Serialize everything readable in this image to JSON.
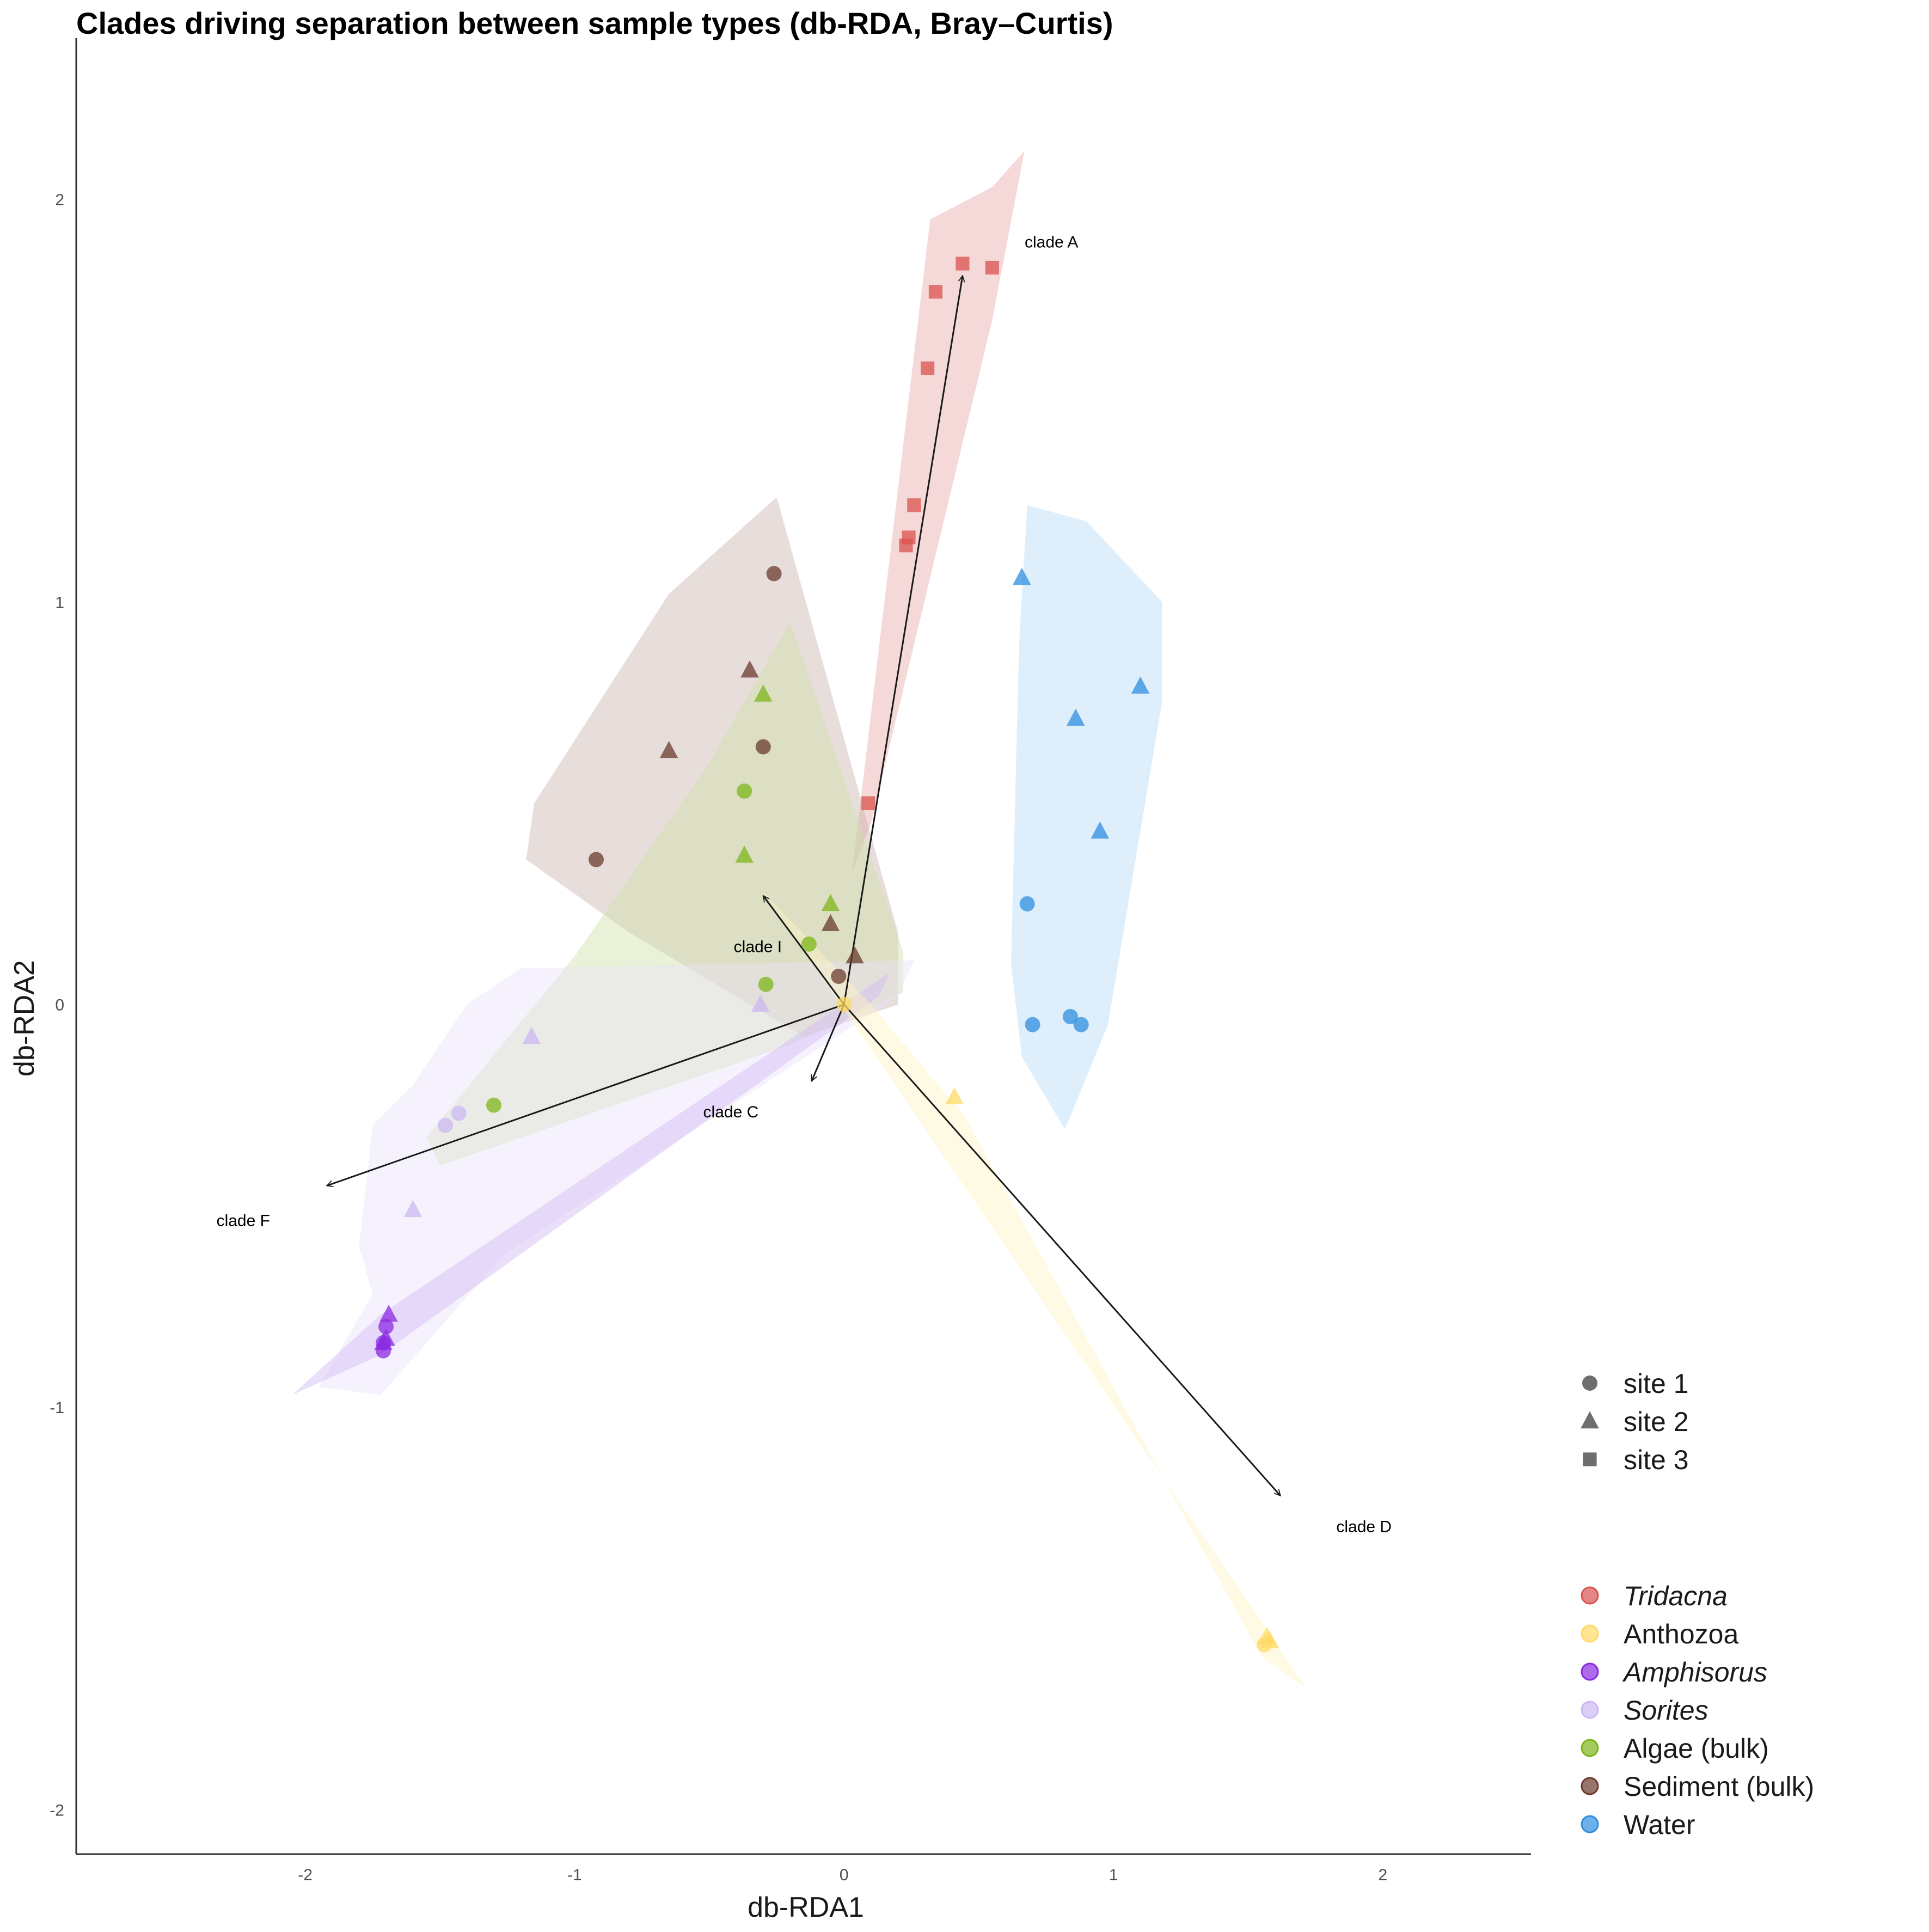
{
  "chart_data": {
    "type": "scatter",
    "title": "Clades driving separation between sample types (db-RDA, Bray–Curtis)",
    "xlabel": "db-RDA1",
    "ylabel": "db-RDA2",
    "xlim": [
      -2.85,
      2.55
    ],
    "ylim": [
      -2.11,
      2.4
    ],
    "x_ticks": [
      -2,
      -1,
      0,
      1,
      2
    ],
    "y_ticks": [
      -2,
      -1,
      0,
      1,
      2
    ],
    "grid": false,
    "legend_placement": "right",
    "shape_legend": [
      {
        "label": "site 1",
        "shape": "circle"
      },
      {
        "label": "site 2",
        "shape": "triangle"
      },
      {
        "label": "site 3",
        "shape": "square"
      }
    ],
    "group_legend": [
      {
        "key": "tridacna",
        "label": "Tridacna",
        "color": "#d9534f",
        "italic": true
      },
      {
        "key": "anthozoa",
        "label": "Anthozoa",
        "color": "#ffd966",
        "italic": false
      },
      {
        "key": "amphisorus",
        "label": "Amphisorus",
        "color": "#8a2be2",
        "italic": true
      },
      {
        "key": "sorites",
        "label": "Sorites",
        "color": "#cbb8f2",
        "italic": true
      },
      {
        "key": "algae",
        "label": "Algae (bulk)",
        "color": "#7cb518",
        "italic": false
      },
      {
        "key": "sediment",
        "label": "Sediment (bulk)",
        "color": "#6b3a2e",
        "italic": false
      },
      {
        "key": "water",
        "label": "Water",
        "color": "#2e8de0",
        "italic": false
      }
    ],
    "hulls": [
      {
        "group": "tridacna",
        "color": "#e8a8a8",
        "points": [
          [
            0.03,
            0.33
          ],
          [
            0.32,
            1.95
          ],
          [
            0.55,
            2.03
          ],
          [
            0.67,
            2.12
          ],
          [
            0.55,
            1.7
          ],
          [
            0.1,
            0.45
          ]
        ]
      },
      {
        "group": "water",
        "color": "#b6d9f7",
        "points": [
          [
            0.68,
            1.24
          ],
          [
            0.9,
            1.2
          ],
          [
            1.18,
            1.0
          ],
          [
            1.18,
            0.75
          ],
          [
            0.98,
            -0.05
          ],
          [
            0.82,
            -0.31
          ],
          [
            0.66,
            -0.13
          ],
          [
            0.62,
            0.1
          ],
          [
            0.65,
            0.9
          ]
        ]
      },
      {
        "group": "sediment",
        "color": "#c9b3ad",
        "points": [
          [
            -0.25,
            1.26
          ],
          [
            0.2,
            0.18
          ],
          [
            0.2,
            0.0
          ],
          [
            -0.15,
            -0.08
          ],
          [
            -0.8,
            0.18
          ],
          [
            -1.18,
            0.36
          ],
          [
            -1.15,
            0.5
          ],
          [
            -0.65,
            1.02
          ]
        ]
      },
      {
        "group": "algae",
        "color": "#cfe2a8",
        "points": [
          [
            -0.2,
            0.95
          ],
          [
            0.22,
            0.13
          ],
          [
            0.22,
            0.03
          ],
          [
            -0.2,
            -0.1
          ],
          [
            -1.5,
            -0.4
          ],
          [
            -1.55,
            -0.33
          ],
          [
            -1.0,
            0.12
          ],
          [
            -0.5,
            0.6
          ]
        ]
      },
      {
        "group": "sorites",
        "color": "#ebe3fb",
        "points": [
          [
            -1.2,
            0.09
          ],
          [
            0.26,
            0.11
          ],
          [
            0.2,
            0.02
          ],
          [
            -1.26,
            -0.62
          ],
          [
            -1.72,
            -0.97
          ],
          [
            -1.95,
            -0.95
          ],
          [
            -1.75,
            -0.72
          ],
          [
            -1.8,
            -0.6
          ],
          [
            -1.75,
            -0.3
          ],
          [
            -1.6,
            -0.2
          ],
          [
            -1.4,
            0.0
          ]
        ]
      },
      {
        "group": "amphisorus",
        "color": "#d1b8f2",
        "points": [
          [
            -1.72,
            -0.77
          ],
          [
            0.17,
            0.08
          ],
          [
            0.13,
            0.02
          ],
          [
            -1.72,
            -0.87
          ],
          [
            -2.05,
            -0.97
          ]
        ]
      },
      {
        "group": "anthozoa",
        "color": "#fff3c4",
        "points": [
          [
            -0.3,
            0.28
          ],
          [
            1.72,
            -1.7
          ],
          [
            1.55,
            -1.62
          ],
          [
            0.45,
            -0.28
          ],
          [
            0.1,
            0.0
          ]
        ]
      }
    ],
    "arrows": [
      {
        "label": "clade A",
        "x": 0.44,
        "y": 1.81,
        "label_x": 0.77,
        "label_y": 1.88
      },
      {
        "label": "clade C",
        "x": -0.12,
        "y": -0.19,
        "label_x": -0.42,
        "label_y": -0.28
      },
      {
        "label": "clade D",
        "x": 1.62,
        "y": -1.22,
        "label_x": 1.93,
        "label_y": -1.31
      },
      {
        "label": "clade F",
        "x": -1.92,
        "y": -0.45,
        "label_x": -2.23,
        "label_y": -0.55
      },
      {
        "label": "clade I",
        "x": -0.3,
        "y": 0.27,
        "label_x": -0.32,
        "label_y": 0.13
      }
    ],
    "series": [
      {
        "group": "tridacna",
        "shape": "square",
        "points": [
          [
            0.44,
            1.84
          ],
          [
            0.55,
            1.83
          ],
          [
            0.34,
            1.77
          ],
          [
            0.31,
            1.58
          ],
          [
            0.26,
            1.24
          ],
          [
            0.24,
            1.16
          ],
          [
            0.23,
            1.14
          ],
          [
            0.09,
            0.5
          ]
        ]
      },
      {
        "group": "water",
        "shape": "triangle",
        "points": [
          [
            0.66,
            1.06
          ],
          [
            1.1,
            0.79
          ],
          [
            0.86,
            0.71
          ],
          [
            0.95,
            0.43
          ]
        ]
      },
      {
        "group": "water",
        "shape": "circle",
        "points": [
          [
            0.68,
            0.25
          ],
          [
            0.7,
            -0.05
          ],
          [
            0.84,
            -0.03
          ],
          [
            0.88,
            -0.05
          ]
        ]
      },
      {
        "group": "sediment",
        "shape": "circle",
        "points": [
          [
            -0.26,
            1.07
          ],
          [
            -0.3,
            0.64
          ],
          [
            -0.92,
            0.36
          ],
          [
            -0.02,
            0.07
          ]
        ]
      },
      {
        "group": "sediment",
        "shape": "triangle",
        "points": [
          [
            -0.35,
            0.83
          ],
          [
            -0.65,
            0.63
          ],
          [
            -0.05,
            0.2
          ],
          [
            0.04,
            0.12
          ]
        ]
      },
      {
        "group": "algae",
        "shape": "circle",
        "points": [
          [
            -0.37,
            0.53
          ],
          [
            -0.13,
            0.15
          ],
          [
            -0.29,
            0.05
          ],
          [
            -1.3,
            -0.25
          ]
        ]
      },
      {
        "group": "algae",
        "shape": "triangle",
        "points": [
          [
            -0.3,
            0.77
          ],
          [
            -0.37,
            0.37
          ],
          [
            -0.05,
            0.25
          ]
        ]
      },
      {
        "group": "sorites",
        "shape": "triangle",
        "points": [
          [
            -0.31,
            0.0
          ],
          [
            -1.16,
            -0.08
          ],
          [
            -1.6,
            -0.51
          ]
        ]
      },
      {
        "group": "sorites",
        "shape": "circle",
        "points": [
          [
            -1.43,
            -0.27
          ],
          [
            -1.48,
            -0.3
          ]
        ]
      },
      {
        "group": "amphisorus",
        "shape": "triangle",
        "points": [
          [
            -1.69,
            -0.77
          ],
          [
            -1.7,
            -0.83
          ],
          [
            -1.71,
            -0.84
          ]
        ]
      },
      {
        "group": "amphisorus",
        "shape": "circle",
        "points": [
          [
            -1.7,
            -0.8
          ],
          [
            -1.71,
            -0.84
          ],
          [
            -1.71,
            -0.86
          ]
        ]
      },
      {
        "group": "anthozoa",
        "shape": "triangle",
        "points": [
          [
            0.41,
            -0.23
          ],
          [
            1.57,
            -1.57
          ],
          [
            1.58,
            -1.58
          ]
        ]
      },
      {
        "group": "anthozoa",
        "shape": "circle",
        "points": [
          [
            0.0,
            0.0
          ],
          [
            1.56,
            -1.59
          ]
        ]
      }
    ]
  }
}
